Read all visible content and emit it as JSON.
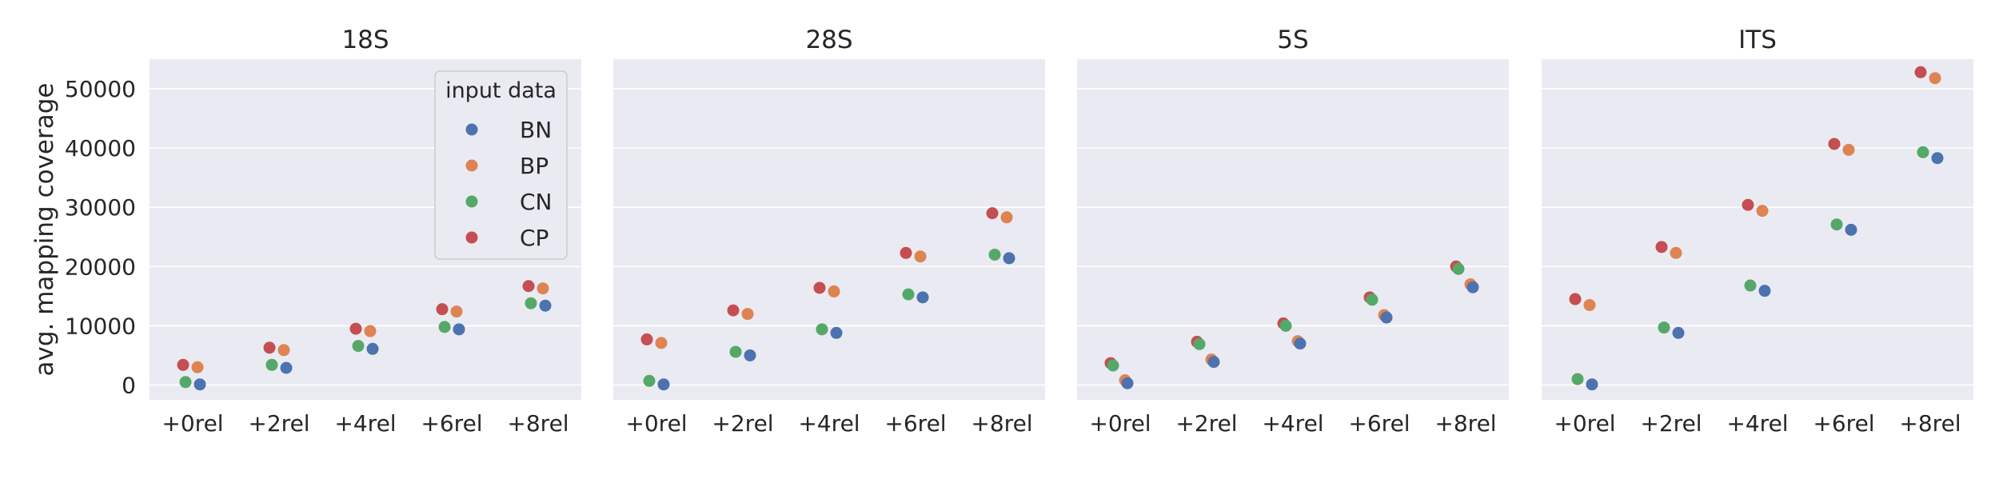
{
  "chart_data": {
    "type": "scatter",
    "ylabel": "avg. mapping coverage",
    "ylim": [
      -2500,
      55000
    ],
    "yticks": [
      0,
      10000,
      20000,
      30000,
      40000,
      50000
    ],
    "ytick_labels": [
      "0",
      "10000",
      "20000",
      "30000",
      "40000",
      "50000"
    ],
    "categories": [
      "+0rel",
      "+2rel",
      "+4rel",
      "+6rel",
      "+8rel"
    ],
    "grid": true,
    "legend": {
      "title": "input data",
      "placement": "top-right of first panel"
    },
    "series_colors": {
      "BN": "#4c72b0",
      "BP": "#dd8452",
      "CN": "#55a868",
      "CP": "#c44e52"
    },
    "panels": [
      {
        "title": "18S",
        "series": [
          {
            "name": "BN",
            "values": [
              100,
              2900,
              6100,
              9400,
              13400
            ]
          },
          {
            "name": "BP",
            "values": [
              3000,
              5900,
              9100,
              12400,
              16300
            ]
          },
          {
            "name": "CN",
            "values": [
              500,
              3400,
              6600,
              9800,
              13800
            ]
          },
          {
            "name": "CP",
            "values": [
              3400,
              6300,
              9500,
              12800,
              16700
            ]
          }
        ]
      },
      {
        "title": "28S",
        "series": [
          {
            "name": "BN",
            "values": [
              100,
              5000,
              8800,
              14800,
              21400
            ]
          },
          {
            "name": "BP",
            "values": [
              7100,
              12000,
              15800,
              21700,
              28300
            ]
          },
          {
            "name": "CN",
            "values": [
              700,
              5600,
              9400,
              15300,
              22000
            ]
          },
          {
            "name": "CP",
            "values": [
              7700,
              12600,
              16400,
              22300,
              29000
            ]
          }
        ]
      },
      {
        "title": "5S",
        "series": [
          {
            "name": "BN",
            "values": [
              300,
              3900,
              7000,
              11400,
              16500
            ]
          },
          {
            "name": "BP",
            "values": [
              800,
              4300,
              7400,
              11800,
              17000
            ]
          },
          {
            "name": "CN",
            "values": [
              3300,
              6900,
              10000,
              14400,
              19600
            ]
          },
          {
            "name": "CP",
            "values": [
              3700,
              7300,
              10400,
              14800,
              20000
            ]
          }
        ]
      },
      {
        "title": "ITS",
        "series": [
          {
            "name": "BN",
            "values": [
              100,
              8800,
              15900,
              26200,
              38300
            ]
          },
          {
            "name": "BP",
            "values": [
              13500,
              22300,
              29400,
              39700,
              51800
            ]
          },
          {
            "name": "CN",
            "values": [
              1000,
              9700,
              16800,
              27100,
              39300
            ]
          },
          {
            "name": "CP",
            "values": [
              14500,
              23300,
              30400,
              40700,
              52800
            ]
          }
        ]
      }
    ]
  }
}
